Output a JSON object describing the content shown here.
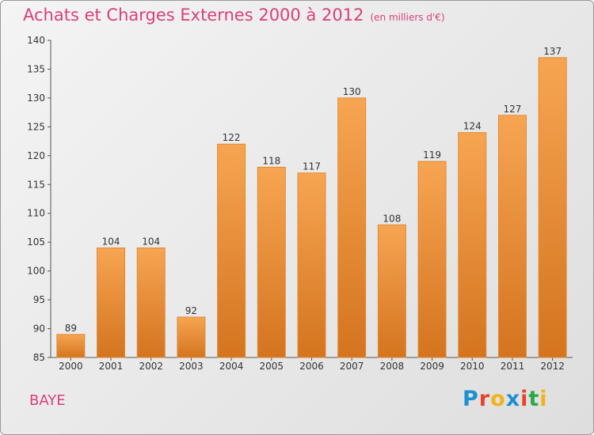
{
  "header": {
    "title": "Achats et Charges Externes 2000 à 2012",
    "subtitle": "(en milliers d'€)"
  },
  "location": "BAYE",
  "logo": {
    "text": "Proxiti",
    "letters": [
      {
        "char": "P",
        "color": "#1e90d0"
      },
      {
        "char": "r",
        "color": "#e8432a"
      },
      {
        "char": "o",
        "color": "#f2b21b"
      },
      {
        "char": "x",
        "color": "#1e90d0"
      },
      {
        "char": "i",
        "color": "#e8432a"
      },
      {
        "char": "t",
        "color": "#2aa84a"
      },
      {
        "char": "i",
        "color": "#f2b21b"
      }
    ]
  },
  "chart_data": {
    "type": "bar",
    "title": "Achats et Charges Externes 2000 à 2012",
    "subtitle": "(en milliers d'€)",
    "categories": [
      "2000",
      "2001",
      "2002",
      "2003",
      "2004",
      "2005",
      "2006",
      "2007",
      "2008",
      "2009",
      "2010",
      "2011",
      "2012"
    ],
    "values": [
      89,
      104,
      104,
      92,
      122,
      118,
      117,
      130,
      108,
      119,
      124,
      127,
      137
    ],
    "ylim": [
      85,
      140
    ],
    "yticks": [
      85,
      90,
      95,
      100,
      105,
      110,
      115,
      120,
      125,
      130,
      135,
      140
    ],
    "grid": false,
    "legend": "none",
    "colors": {
      "bar_top": "#f7a552",
      "bar_bottom": "#d4741f",
      "bar_edge": "#e08a35",
      "title": "#d9407a"
    }
  }
}
